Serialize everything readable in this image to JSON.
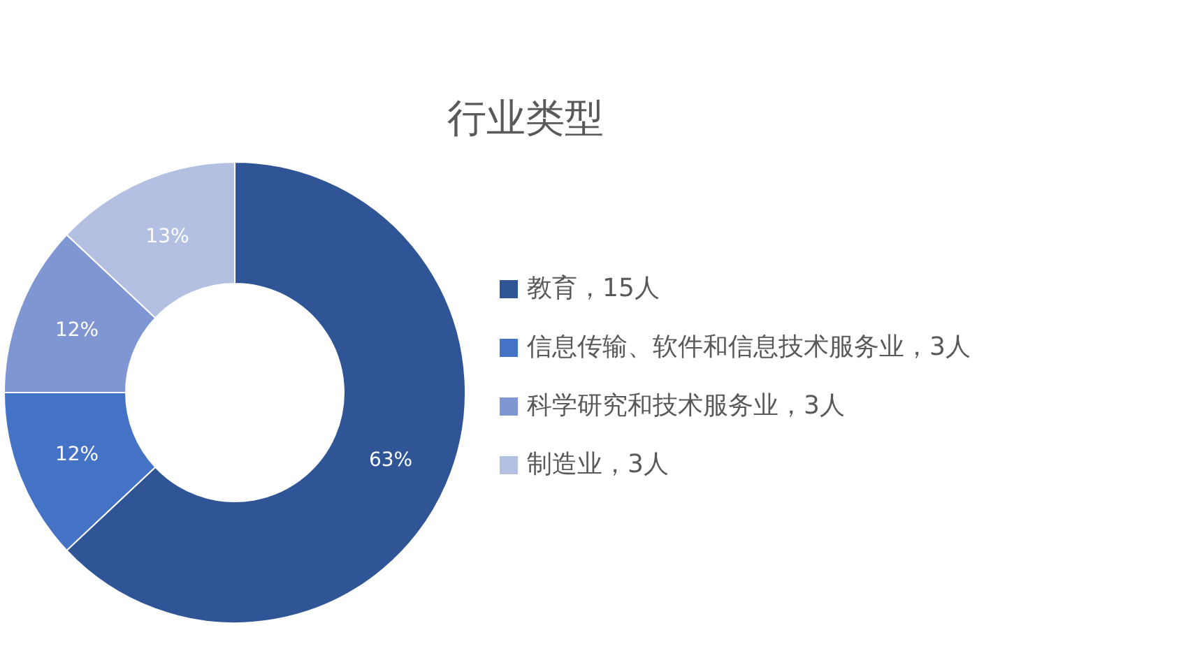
{
  "chart_data": {
    "type": "donut",
    "title": "行业类型",
    "categories": [
      "教育，15人",
      "信息传输、软件和信息技术服务业，3人",
      "科学研究和技术服务业，3人",
      "制造业，3人"
    ],
    "values": [
      63,
      12,
      12,
      13
    ],
    "colors": [
      "#2f5597",
      "#4472c4",
      "#7f96d2",
      "#b4c0e2"
    ],
    "value_labels": [
      "63%",
      "12%",
      "12%",
      "13%"
    ],
    "legend": "right"
  }
}
